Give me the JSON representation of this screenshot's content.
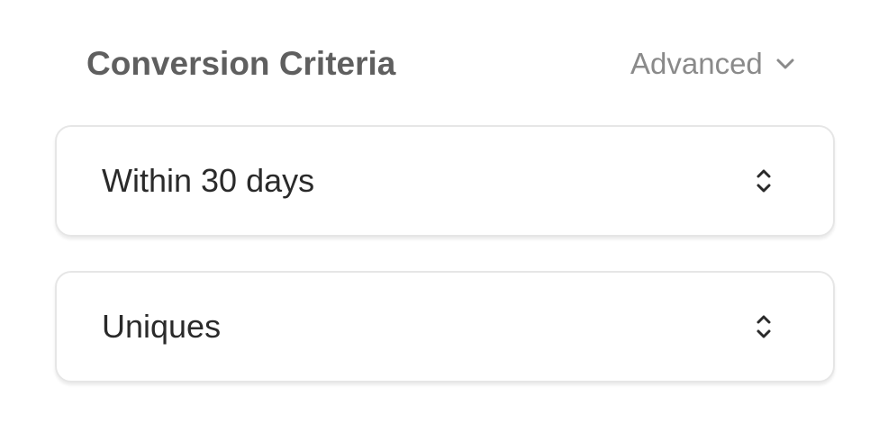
{
  "header": {
    "title": "Conversion Criteria",
    "advanced_label": "Advanced"
  },
  "selects": [
    {
      "value": "Within 30 days"
    },
    {
      "value": "Uniques"
    }
  ]
}
